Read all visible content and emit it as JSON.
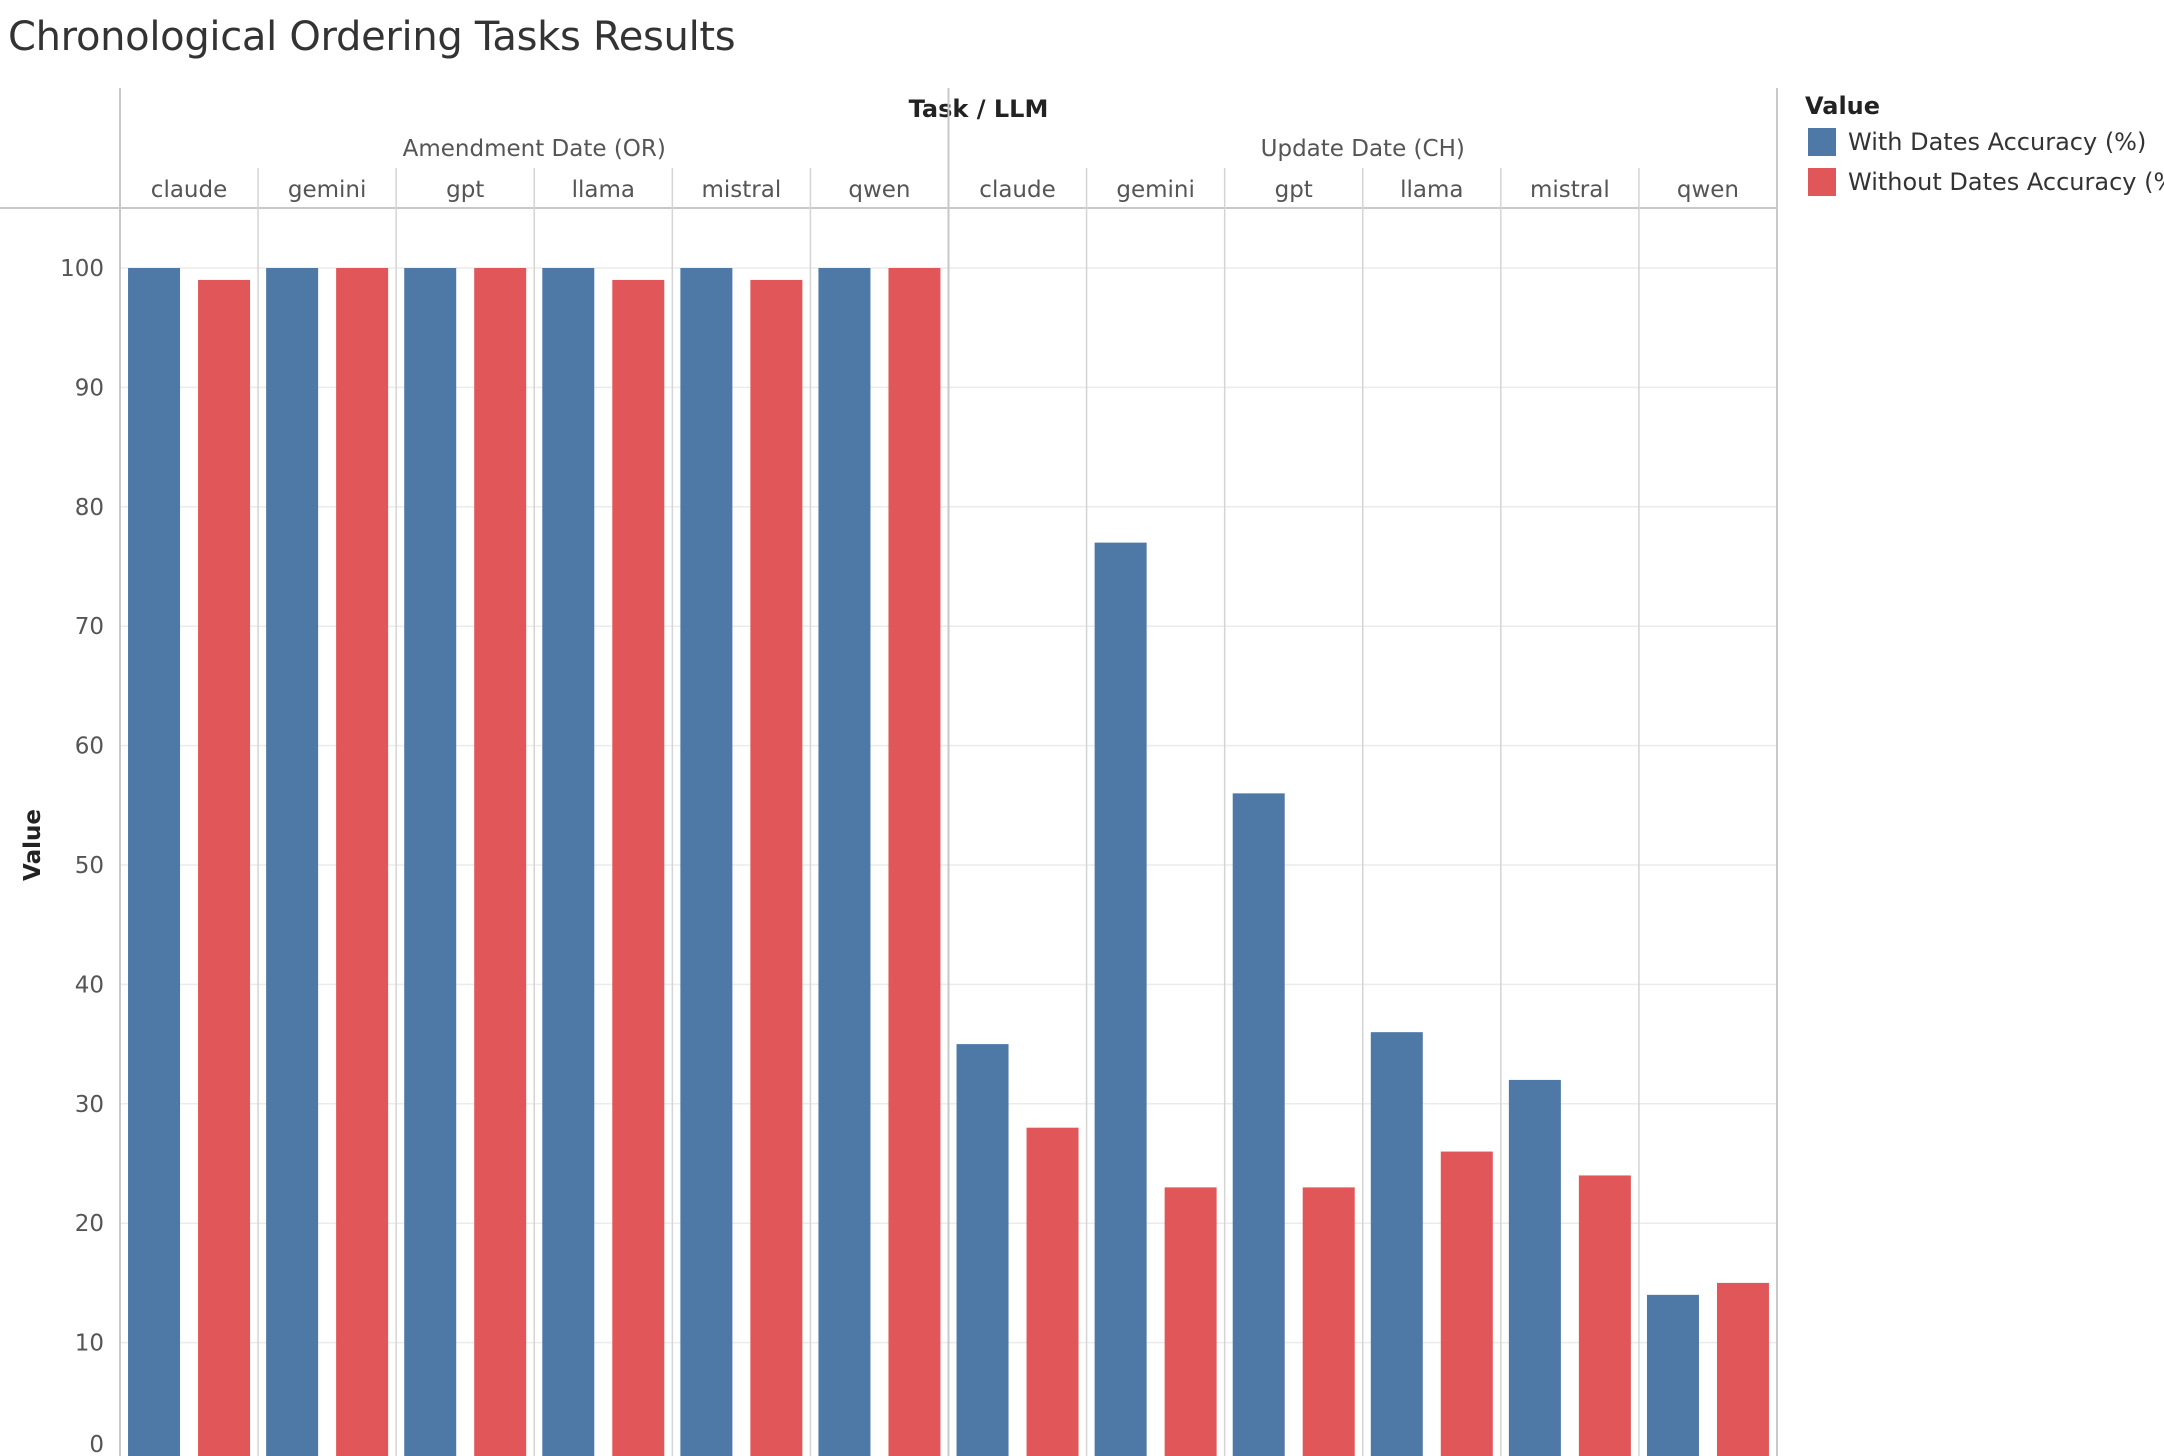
{
  "title": "Chronological Ordering Tasks Results",
  "chart_data": {
    "type": "bar",
    "title": "Chronological Ordering Tasks Results",
    "header_label": "Task  /  LLM",
    "ylabel": "Value",
    "ylim": [
      0,
      100
    ],
    "yticks": [
      0,
      10,
      20,
      30,
      40,
      50,
      60,
      70,
      80,
      90,
      100
    ],
    "grid": true,
    "legend_position": "top-right",
    "legend_title": "Value",
    "groups": [
      {
        "name": "Amendment Date (OR)",
        "categories": [
          "claude",
          "gemini",
          "gpt",
          "llama",
          "mistral",
          "qwen"
        ],
        "series": [
          {
            "name": "With Dates Accuracy (%)",
            "values": [
              100,
              100,
              100,
              100,
              100,
              100
            ]
          },
          {
            "name": "Without Dates Accuracy (%)",
            "values": [
              99,
              100,
              100,
              99,
              99,
              100
            ]
          }
        ]
      },
      {
        "name": "Update Date (CH)",
        "categories": [
          "claude",
          "gemini",
          "gpt",
          "llama",
          "mistral",
          "qwen"
        ],
        "series": [
          {
            "name": "With Dates Accuracy (%)",
            "values": [
              35,
              77,
              56,
              36,
              32,
              14
            ]
          },
          {
            "name": "Without Dates Accuracy (%)",
            "values": [
              28,
              23,
              23,
              26,
              24,
              15
            ]
          }
        ]
      }
    ],
    "series_colors": [
      "#4e79a7",
      "#e15759"
    ]
  },
  "legend": {
    "title": "Value",
    "items": [
      {
        "label": "With Dates Accuracy (%)",
        "color": "#4e79a7"
      },
      {
        "label": "Without Dates Accuracy (%)",
        "color": "#e15759"
      }
    ]
  }
}
